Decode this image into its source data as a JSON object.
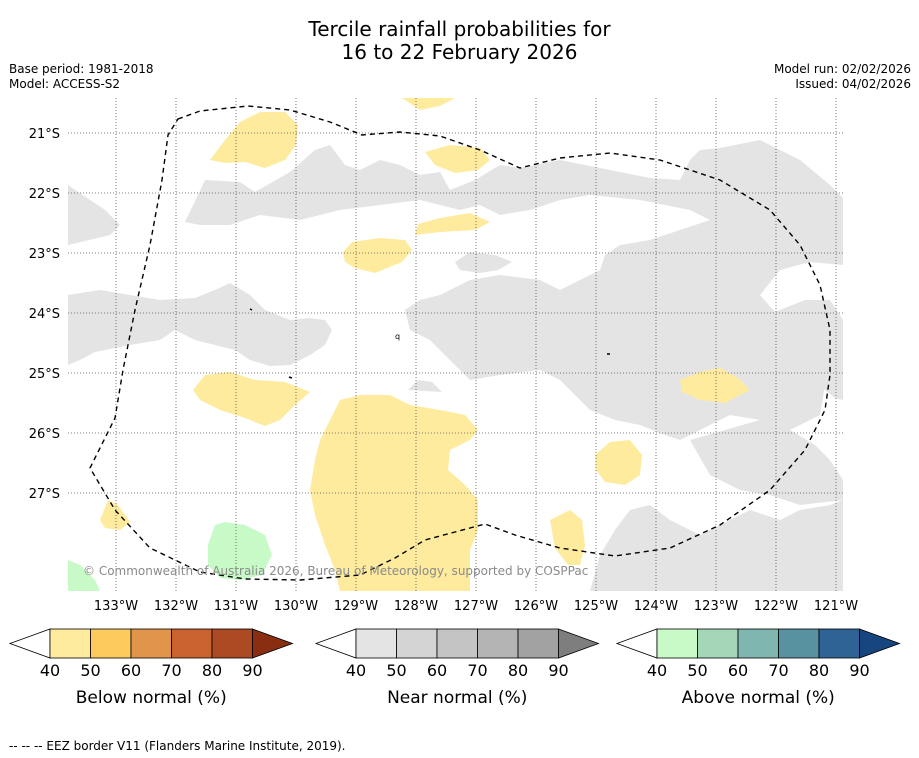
{
  "title_line1": "Tercile rainfall probabilities for",
  "title_line2": "16 to 22 February 2026",
  "base_period": "Base period: 1981-2018",
  "model": "Model: ACCESS-S2",
  "model_run": "Model run: 02/02/2026",
  "issued": "Issued: 04/02/2026",
  "copyright": "© Commonwealth of Australia 2026, Bureau of Meteorology, supported by COSPPac",
  "latitude_labels": [
    "21°S",
    "22°S",
    "23°S",
    "24°S",
    "25°S",
    "26°S",
    "27°S"
  ],
  "longitude_labels": [
    "133°W",
    "132°W",
    "131°W",
    "130°W",
    "129°W",
    "128°W",
    "127°W",
    "126°W",
    "125°W",
    "124°W",
    "123°W",
    "122°W",
    "121°W"
  ],
  "colorbars": [
    {
      "label": "Below normal (%)",
      "ticks": [
        "40",
        "50",
        "60",
        "70",
        "80",
        "90"
      ],
      "colors": [
        "#ffffff",
        "#feeb9e",
        "#fdca5e",
        "#e0954a",
        "#c9622f",
        "#ae4a23",
        "#8a2e12"
      ]
    },
    {
      "label": "Near normal (%)",
      "ticks": [
        "40",
        "50",
        "60",
        "70",
        "80",
        "90"
      ],
      "colors": [
        "#ffffff",
        "#e4e4e4",
        "#d4d4d4",
        "#c4c4c4",
        "#b4b4b4",
        "#a2a2a2",
        "#7e7e7e"
      ]
    },
    {
      "label": "Above normal (%)",
      "ticks": [
        "40",
        "50",
        "60",
        "70",
        "80",
        "90"
      ],
      "colors": [
        "#ffffff",
        "#c8fac8",
        "#a3d7b8",
        "#80b6b0",
        "#5891a0",
        "#2f6396",
        "#17457f"
      ]
    }
  ],
  "footer": "-- -- -- EEZ border V11 (Flanders Marine Institute, 2019)."
}
